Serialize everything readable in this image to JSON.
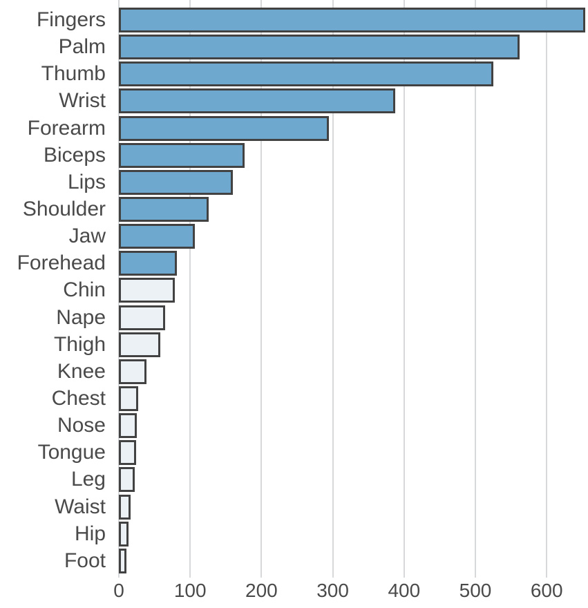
{
  "chart_data": {
    "type": "bar",
    "orientation": "horizontal",
    "title": "",
    "xlabel": "",
    "ylabel": "",
    "categories": [
      "Fingers",
      "Palm",
      "Thumb",
      "Wrist",
      "Forearm",
      "Biceps",
      "Lips",
      "Shoulder",
      "Jaw",
      "Forehead",
      "Chin",
      "Nape",
      "Thigh",
      "Knee",
      "Chest",
      "Nose",
      "Tongue",
      "Leg",
      "Waist",
      "Hip",
      "Foot"
    ],
    "values": [
      650,
      558,
      521,
      384,
      291,
      172,
      156,
      122,
      103,
      78,
      75,
      61,
      54,
      35,
      23,
      21,
      20,
      18,
      13,
      10,
      7
    ],
    "highlighted": [
      true,
      true,
      true,
      true,
      true,
      true,
      true,
      true,
      true,
      true,
      false,
      false,
      false,
      false,
      false,
      false,
      false,
      false,
      false,
      false,
      false
    ],
    "x_ticks": [
      0,
      100,
      200,
      300,
      400,
      500,
      600
    ],
    "xlim": [
      0,
      658
    ],
    "grid": true,
    "legend": null,
    "colors": {
      "bar_fill_highlight": "#6FA8CE",
      "bar_fill_muted": "#ECF1F6",
      "bar_border": "#424242",
      "gridline": "#D6D8DA",
      "label_text": "#4A4A4A",
      "tick_text": "#4A4A4A"
    }
  }
}
